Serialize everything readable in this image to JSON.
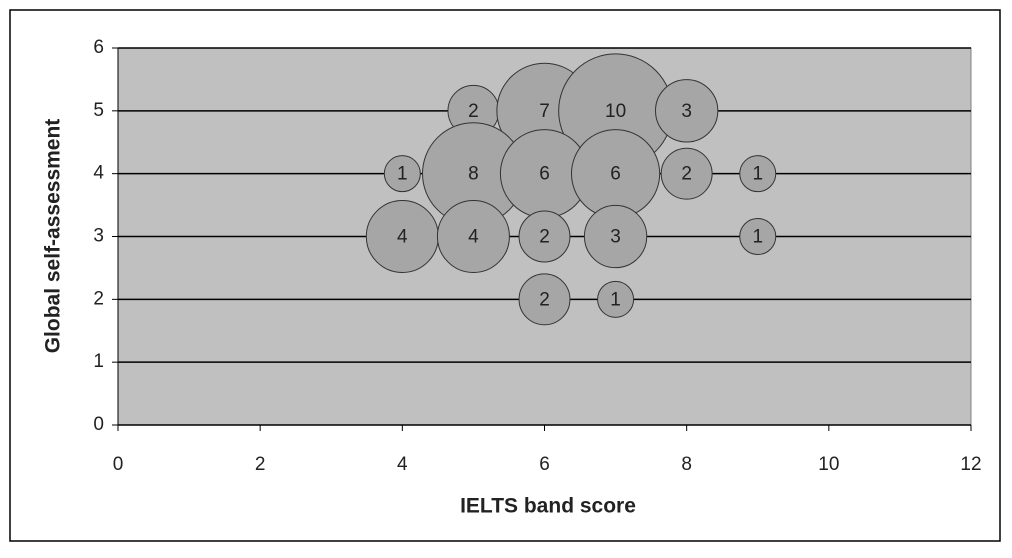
{
  "chart_data": {
    "type": "bubble",
    "x_label": "IELTS band score",
    "y_label": "Global self-assessment",
    "x": [
      5,
      6,
      7,
      8,
      4,
      5,
      6,
      7,
      8,
      9,
      4,
      5,
      6,
      7,
      9,
      6,
      7
    ],
    "values": [
      5,
      5,
      5,
      5,
      4,
      4,
      4,
      4,
      4,
      4,
      3,
      3,
      3,
      3,
      3,
      2,
      2
    ],
    "sizes": [
      2,
      7,
      10,
      3,
      1,
      8,
      6,
      6,
      2,
      1,
      4,
      4,
      2,
      3,
      1,
      2,
      1
    ],
    "color": "#a6a6a6",
    "xlim": [
      0,
      12
    ],
    "xticks": [
      0,
      2,
      4,
      6,
      8,
      10,
      12
    ],
    "ylim": [
      0,
      6
    ],
    "yticks": [
      0,
      1,
      2,
      3,
      4,
      5,
      6
    ],
    "grid": true
  }
}
